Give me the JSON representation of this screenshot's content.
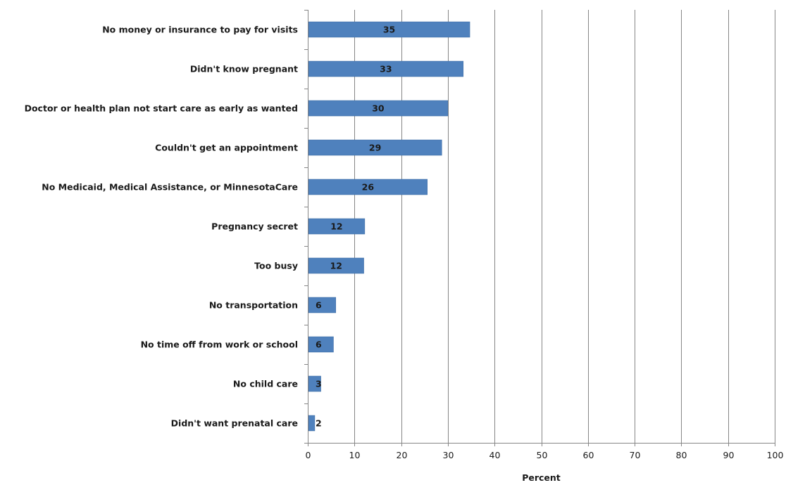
{
  "chart_data": {
    "type": "bar",
    "orientation": "horizontal",
    "categories": [
      "No money or insurance to pay for visits",
      "Didn't know pregnant",
      "Doctor or health plan not start care as early as wanted",
      "Couldn't get an appointment",
      "No Medicaid, Medical Assistance, or MinnesotaCare",
      "Pregnancy secret",
      "Too busy",
      "No transportation",
      "No time off from work or school",
      "No child care",
      "Didn't want prenatal care"
    ],
    "values": [
      34.7,
      33.3,
      30.0,
      28.7,
      25.6,
      12.2,
      12.0,
      6.0,
      5.5,
      2.8,
      1.5
    ],
    "data_labels": [
      "35",
      "33",
      "30",
      "29",
      "26",
      "12",
      "12",
      "6",
      "6",
      "3",
      "2"
    ],
    "xlabel": "Percent",
    "ylabel": "",
    "xlim": [
      0,
      100
    ],
    "xticks": [
      "0",
      "10",
      "20",
      "30",
      "40",
      "50",
      "60",
      "70",
      "80",
      "90",
      "100"
    ],
    "grid": "vertical",
    "legend": "none",
    "bar_color": "#4f81bd",
    "bar_edge_color": "#3a6aa3"
  }
}
